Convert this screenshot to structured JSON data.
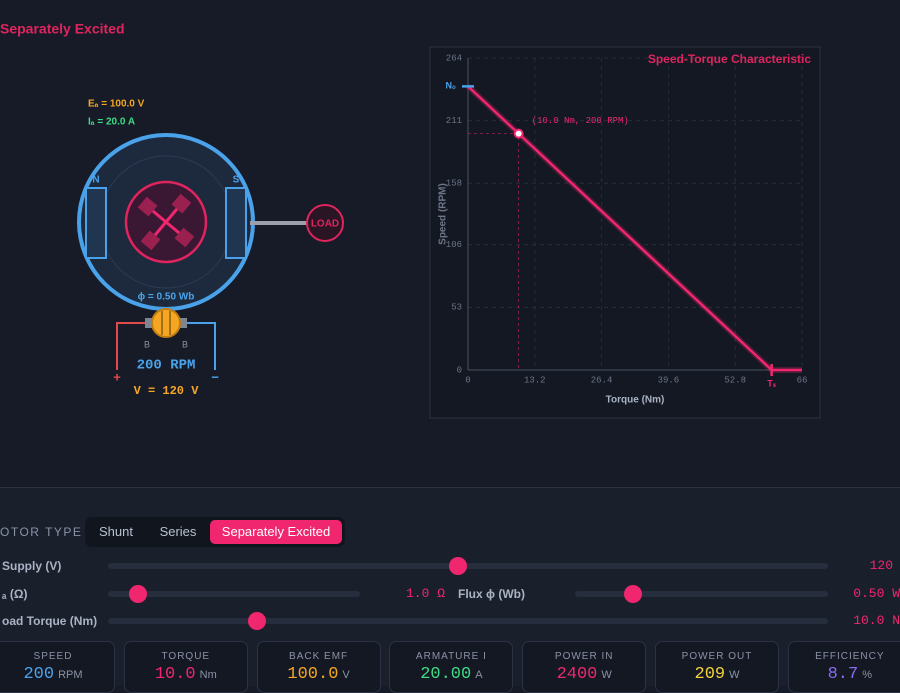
{
  "header": {
    "title": "Separately Excited"
  },
  "motor": {
    "emf_label": "Eₐ = 100.0 V",
    "current_label": "Iₐ = 20.0 A",
    "north": "N",
    "south": "S",
    "load": "LOAD",
    "flux_label": "ϕ = 0.50 Wb",
    "brush_left": "B",
    "brush_right": "B",
    "speed_label": "200 RPM",
    "plus": "+",
    "minus": "−",
    "voltage_label": "V = 120 V"
  },
  "plot": {
    "type": "line",
    "title": "Speed-Torque Characteristic",
    "x_label": "Torque (Nm)",
    "y_label": "Speed (RPM)",
    "xlim": [
      0,
      66
    ],
    "ylim": [
      0,
      264
    ],
    "xticks": [
      0,
      13.2,
      26.4,
      39.6,
      52.8,
      66
    ],
    "yticks": [
      0,
      53,
      106,
      158,
      211,
      264
    ],
    "grid": true,
    "color": "#f0266f",
    "x": [
      0,
      10,
      60,
      66
    ],
    "y": [
      240,
      200,
      0,
      0
    ],
    "point": {
      "x": 10,
      "y": 200,
      "label": "(10.0 Nm, 200 RPM)"
    },
    "no_load_label": "N₀",
    "stall_label": "Tₛ"
  },
  "controls": {
    "motor_type_label": "OTOR TYPE",
    "tabs": [
      "Shunt",
      "Series",
      "Separately Excited"
    ],
    "active_tab": 2,
    "sliders": [
      {
        "label": "Supply (V)",
        "value": "120"
      },
      {
        "label": "ₐ (Ω)",
        "value": "1.0 Ω"
      },
      {
        "label": "Flux ϕ (Wb)",
        "value": "0.50 W"
      },
      {
        "label": "oad Torque (Nm)",
        "value": "10.0 N"
      }
    ]
  },
  "stats": [
    {
      "label": "SPEED",
      "value": "200",
      "unit": "RPM",
      "color": "#4aa3ea"
    },
    {
      "label": "TORQUE",
      "value": "10.0",
      "unit": "Nm",
      "color": "#f0266f"
    },
    {
      "label": "BACK EMF",
      "value": "100.0",
      "unit": "V",
      "color": "#f5a623"
    },
    {
      "label": "ARMATURE I",
      "value": "20.00",
      "unit": "A",
      "color": "#3ddc84"
    },
    {
      "label": "POWER IN",
      "value": "2400",
      "unit": "W",
      "color": "#f0266f"
    },
    {
      "label": "POWER OUT",
      "value": "209",
      "unit": "W",
      "color": "#f5d33a"
    },
    {
      "label": "EFFICIENCY",
      "value": "8.7",
      "unit": "%",
      "color": "#8b6cf0"
    }
  ]
}
